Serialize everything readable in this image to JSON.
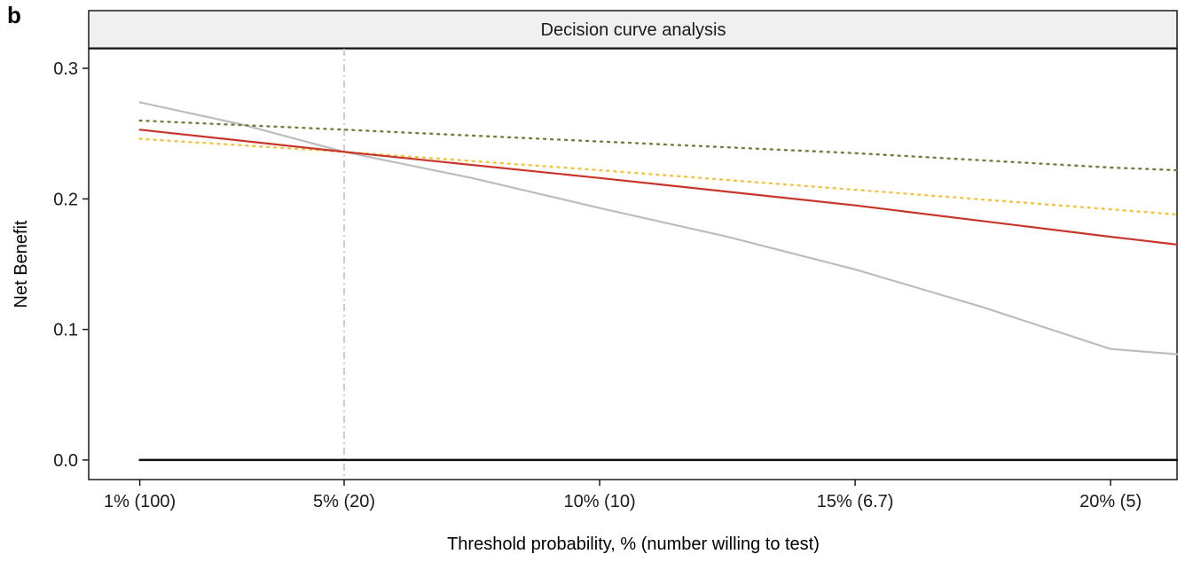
{
  "panel_label": "b",
  "chart_data": {
    "type": "line",
    "title": "Decision curve analysis",
    "xlabel": "Threshold probability, % (number willing to test)",
    "ylabel": "Net Benefit",
    "xlim": [
      0.0,
      0.213
    ],
    "ylim": [
      -0.015,
      0.315
    ],
    "x_ticks": [
      {
        "value": 0.01,
        "label": "1% (100)"
      },
      {
        "value": 0.05,
        "label": "5% (20)"
      },
      {
        "value": 0.1,
        "label": "10% (10)"
      },
      {
        "value": 0.15,
        "label": "15% (6.7)"
      },
      {
        "value": 0.2,
        "label": "20% (5)"
      }
    ],
    "y_ticks": [
      {
        "value": 0.0,
        "label": "0.0"
      },
      {
        "value": 0.1,
        "label": "0.1"
      },
      {
        "value": 0.2,
        "label": "0.2"
      },
      {
        "value": 0.3,
        "label": "0.3"
      }
    ],
    "reference_vline": {
      "x": 0.05,
      "color": "#c8c8c8",
      "style": "dashdot"
    },
    "grid": false,
    "legend": "none",
    "series": [
      {
        "id": "treat-all",
        "color": "#bdbdbd",
        "style": "solid",
        "x": [
          0.01,
          0.03,
          0.05,
          0.075,
          0.1,
          0.125,
          0.15,
          0.175,
          0.2,
          0.213
        ],
        "y": [
          0.274,
          0.257,
          0.236,
          0.216,
          0.193,
          0.171,
          0.146,
          0.117,
          0.085,
          0.081
        ]
      },
      {
        "id": "olive-dotted",
        "color": "#7a7a3e",
        "style": "dotted",
        "x": [
          0.01,
          0.05,
          0.1,
          0.15,
          0.2,
          0.213
        ],
        "y": [
          0.26,
          0.253,
          0.244,
          0.235,
          0.224,
          0.222
        ]
      },
      {
        "id": "yellow-dotted",
        "color": "#f2c43d",
        "style": "dotted",
        "x": [
          0.01,
          0.05,
          0.1,
          0.15,
          0.2,
          0.213
        ],
        "y": [
          0.246,
          0.236,
          0.222,
          0.207,
          0.192,
          0.188
        ]
      },
      {
        "id": "red-model",
        "color": "#c8352a",
        "style": "solid",
        "x": [
          0.01,
          0.05,
          0.1,
          0.15,
          0.2,
          0.213
        ],
        "y": [
          0.253,
          0.236,
          0.216,
          0.195,
          0.171,
          0.165
        ]
      },
      {
        "id": "treat-none",
        "color": "#111111",
        "style": "solid",
        "x": [
          0.01,
          0.213
        ],
        "y": [
          0.0,
          0.0
        ]
      }
    ]
  }
}
